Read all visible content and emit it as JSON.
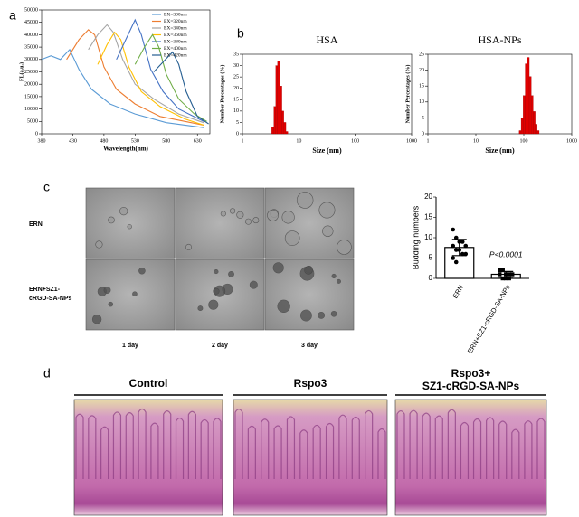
{
  "figure": {
    "panel_labels": [
      "a",
      "b",
      "c",
      "d"
    ],
    "panel_c": {
      "rows": [
        [
          "ERN"
        ],
        [
          "ERN+SZ1-",
          "cRGD-SA-NPs"
        ]
      ],
      "columns": [
        "1 day",
        "2 day",
        "3 day"
      ]
    },
    "panel_d": {
      "titles": [
        [
          "Control"
        ],
        [
          "Rspo3"
        ],
        [
          "Rspo3+",
          "SZ1-cRGD-SA-NPs"
        ]
      ]
    }
  },
  "chart_data": [
    {
      "type": "line",
      "x_label": "Wavelength(nm)",
      "y_label": "FL(a.u.)",
      "xlim": [
        380,
        650
      ],
      "xticks": [
        380,
        430,
        480,
        530,
        580,
        630
      ],
      "ylim": [
        0,
        50000
      ],
      "yticks": [
        0,
        5000,
        10000,
        15000,
        20000,
        25000,
        30000,
        35000,
        40000,
        45000,
        50000
      ],
      "legend": "top-right",
      "series": [
        {
          "name": "EX=300nm",
          "color": "#5b9bd5",
          "x": [
            380,
            395,
            410,
            425,
            440,
            460,
            490,
            530,
            580,
            640
          ],
          "values": [
            30000,
            31500,
            30000,
            34000,
            26000,
            18000,
            12000,
            8000,
            4500,
            2500
          ]
        },
        {
          "name": "EX=320nm",
          "color": "#ed7d31",
          "x": [
            420,
            440,
            455,
            465,
            480,
            500,
            530,
            570,
            640
          ],
          "values": [
            30000,
            38000,
            42000,
            40000,
            27000,
            18000,
            12000,
            7000,
            3500
          ]
        },
        {
          "name": "EX=340nm",
          "color": "#a5a5a5",
          "x": [
            455,
            470,
            485,
            495,
            510,
            530,
            560,
            600,
            640
          ],
          "values": [
            34000,
            40000,
            44000,
            41000,
            30000,
            20000,
            14000,
            8000,
            4500
          ]
        },
        {
          "name": "EX=360nm",
          "color": "#ffc000",
          "x": [
            470,
            485,
            497,
            507,
            520,
            540,
            570,
            610,
            640
          ],
          "values": [
            28000,
            36000,
            41000,
            38000,
            27000,
            17000,
            11000,
            6000,
            3500
          ]
        },
        {
          "name": "EX=380nm",
          "color": "#4472c4",
          "x": [
            500,
            515,
            530,
            540,
            555,
            575,
            600,
            640
          ],
          "values": [
            30000,
            38000,
            46000,
            40000,
            26000,
            17000,
            10000,
            5000
          ]
        },
        {
          "name": "EX=400nm",
          "color": "#70ad47",
          "x": [
            530,
            545,
            558,
            568,
            580,
            600,
            625,
            645
          ],
          "values": [
            28000,
            35000,
            40000,
            35000,
            24000,
            14000,
            8000,
            5000
          ]
        },
        {
          "name": "EX=420nm",
          "color": "#255e91",
          "x": [
            560,
            575,
            590,
            600,
            612,
            630,
            648
          ],
          "values": [
            25000,
            29000,
            33000,
            28000,
            17000,
            7000,
            4000
          ]
        }
      ]
    },
    {
      "type": "histogram",
      "title": "HSA",
      "x_label": "Size  (nm)",
      "y_label": "Number Percentages (%)",
      "log_x": true,
      "color": "#e00000",
      "xlim": [
        1,
        1000
      ],
      "xticks": [
        1,
        10,
        100,
        1000
      ],
      "ylim": [
        0,
        35
      ],
      "yticks": [
        0,
        5,
        10,
        15,
        20,
        25,
        30,
        35
      ],
      "bins": [
        3.3,
        3.6,
        3.9,
        4.2,
        4.6,
        5.0,
        5.4,
        5.9,
        6.4
      ],
      "counts": [
        3,
        12,
        30,
        32,
        21,
        10,
        5,
        1
      ]
    },
    {
      "type": "histogram",
      "title": "HSA-NPs",
      "x_label": "Size  (nm)",
      "y_label": "Number Percentages (%)",
      "log_x": true,
      "color": "#e00000",
      "xlim": [
        1,
        1000
      ],
      "xticks": [
        1,
        10,
        100,
        1000
      ],
      "ylim": [
        0,
        25
      ],
      "yticks": [
        0,
        5,
        10,
        15,
        20,
        25
      ],
      "bins": [
        80,
        88,
        97,
        107,
        118,
        130,
        143,
        157,
        173,
        190,
        209
      ],
      "counts": [
        1,
        5,
        12,
        22,
        24,
        18,
        12,
        7,
        3,
        1
      ]
    },
    {
      "type": "bar",
      "y_label": "Budding numbers",
      "categories": [
        "ERN",
        "ERN+SZ1-cRGD-SA-NPs"
      ],
      "values": [
        7.6,
        1.0
      ],
      "errors": [
        2.0,
        0.7
      ],
      "points": [
        [
          12,
          10,
          9,
          9,
          8,
          8,
          7,
          7,
          6,
          6,
          5,
          4
        ],
        [
          2,
          2,
          1,
          1,
          1,
          1,
          0,
          0,
          0
        ]
      ],
      "annotation": "P<0.0001",
      "color": "#ffffff",
      "ylim": [
        0,
        20
      ],
      "yticks": [
        0,
        5,
        10,
        15,
        20
      ]
    }
  ]
}
